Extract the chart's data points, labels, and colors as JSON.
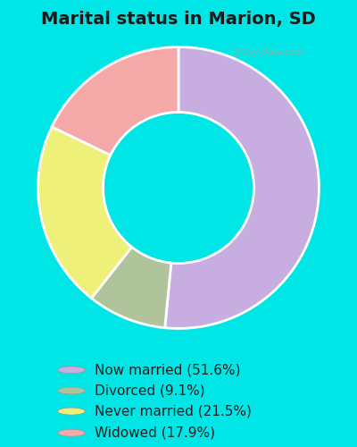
{
  "title": "Marital status in Marion, SD",
  "slices": [
    51.6,
    9.1,
    21.5,
    17.9
  ],
  "labels": [
    "Now married (51.6%)",
    "Divorced (9.1%)",
    "Never married (21.5%)",
    "Widowed (17.9%)"
  ],
  "colors": [
    "#c8aee0",
    "#afc49a",
    "#eef07a",
    "#f4a8a8"
  ],
  "bg_outer": "#00e5e5",
  "bg_chart": "#d8eedc",
  "title_fontsize": 14,
  "legend_fontsize": 11,
  "watermark": "City-Data.com",
  "startangle": 90,
  "donut_width": 0.38
}
